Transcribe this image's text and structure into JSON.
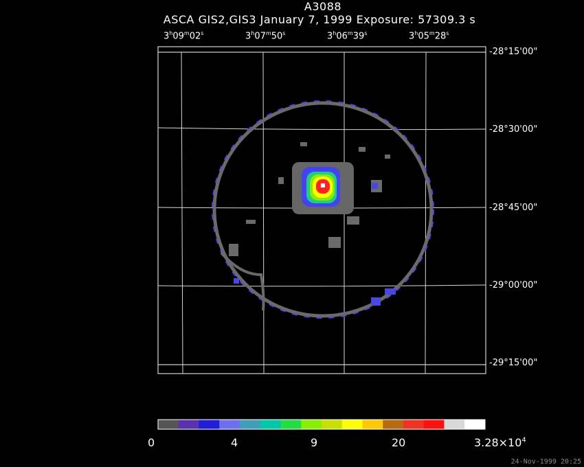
{
  "title": "A3088",
  "subtitle": "ASCA GIS2,GIS3 January 7, 1999 Exposure: 57309.3 s",
  "ra_ticks": [
    {
      "h": "3",
      "m": "09",
      "s": "02"
    },
    {
      "h": "3",
      "m": "07",
      "s": "50"
    },
    {
      "h": "3",
      "m": "06",
      "s": "39"
    },
    {
      "h": "3",
      "m": "05",
      "s": "28"
    }
  ],
  "dec_ticks": [
    "-28°15'00\"",
    "-28°30'00\"",
    "-28°45'00\"",
    "-29°00'00\"",
    "-29°15'00\""
  ],
  "colorbar": {
    "colors": [
      "#555555",
      "#5a2fb0",
      "#1f1fd8",
      "#6e6ef0",
      "#3f9fb8",
      "#00c8a8",
      "#22dd44",
      "#88ee00",
      "#c8e000",
      "#ffff00",
      "#ffc800",
      "#b86a10",
      "#ee3322",
      "#ff1111",
      "#d8d8d8",
      "#ffffff"
    ],
    "labels": [
      {
        "text": "0",
        "exp": ""
      },
      {
        "text": "4",
        "exp": ""
      },
      {
        "text": "9",
        "exp": ""
      },
      {
        "text": "20",
        "exp": ""
      },
      {
        "text": "3.28×10",
        "exp": "4"
      }
    ]
  },
  "timestamp": "24-Nov-1999 20:25",
  "image": {
    "background": "#000000",
    "frame_color": "#ffffff",
    "ring_color": "#6a6a6a",
    "edge_color": "#4848e0",
    "source_colors": [
      "#666666",
      "#4444ee",
      "#22cc88",
      "#88ee00",
      "#ffff00",
      "#ff2222",
      "#ffffff"
    ]
  }
}
